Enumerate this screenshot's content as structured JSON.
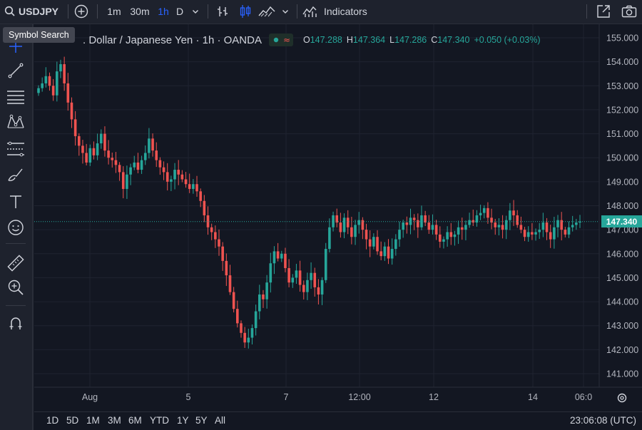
{
  "toolbar": {
    "symbol": "USDJPY",
    "intervals": [
      "1m",
      "30m",
      "1h",
      "D"
    ],
    "active_interval": "1h",
    "indicators_label": "Indicators"
  },
  "tooltip": {
    "text": "Symbol Search"
  },
  "legend": {
    "title": ". Dollar / Japanese Yen · 1h · OANDA",
    "open_label": "O",
    "open": "147.288",
    "high_label": "H",
    "high": "147.364",
    "low_label": "L",
    "low": "147.286",
    "close_label": "C",
    "close": "147.340",
    "change": "+0.050 (+0.03%)"
  },
  "price_axis": {
    "ticks": [
      "155.000",
      "154.000",
      "153.000",
      "152.000",
      "151.000",
      "150.000",
      "149.000",
      "148.000",
      "147.000",
      "146.000",
      "145.000",
      "144.000",
      "143.000",
      "142.000",
      "141.000"
    ],
    "last_price": "147.340"
  },
  "time_axis": {
    "ticks": [
      "Aug",
      "5",
      "7",
      "12:00",
      "12",
      "14",
      "06:0"
    ]
  },
  "bottom": {
    "ranges": [
      "1D",
      "5D",
      "1M",
      "3M",
      "6M",
      "YTD",
      "1Y",
      "5Y",
      "All"
    ],
    "clock": "23:06:08 (UTC)"
  },
  "colors": {
    "up": "#26a69a",
    "down": "#ef5350",
    "accent": "#2962ff",
    "background": "#131722",
    "grid": "#1f2330"
  },
  "icons": {
    "top": [
      "search-icon",
      "add-symbol-icon",
      "bar-style-icon",
      "candles-icon",
      "area-icon",
      "chevron-down-icon",
      "indicators-icon",
      "fullscreen-icon",
      "camera-icon"
    ],
    "left": [
      "crosshair-icon",
      "trend-line-icon",
      "fib-lines-icon",
      "pattern-icon",
      "forecast-icon",
      "brush-icon",
      "text-icon",
      "emoji-icon",
      "ruler-icon",
      "zoom-icon",
      "magnet-icon"
    ]
  },
  "chart_data": {
    "type": "candlestick",
    "symbol": "USDJPY",
    "interval": "1h",
    "ylim": [
      140.6,
      155.6
    ],
    "candles_close_path": [
      152.9,
      153.1,
      153.4,
      153.0,
      152.6,
      153.6,
      153.9,
      153.1,
      152.3,
      151.6,
      150.9,
      150.5,
      150.2,
      149.8,
      150.4,
      150.1,
      150.6,
      151.0,
      150.3,
      150.0,
      149.9,
      149.7,
      149.4,
      148.7,
      149.3,
      149.6,
      149.8,
      149.5,
      149.9,
      150.2,
      150.8,
      150.3,
      149.9,
      149.6,
      149.4,
      149.0,
      149.1,
      149.5,
      149.3,
      149.1,
      148.9,
      148.7,
      148.9,
      148.6,
      148.2,
      147.6,
      147.1,
      146.9,
      146.6,
      146.3,
      145.7,
      145.1,
      144.4,
      143.7,
      143.1,
      142.7,
      142.3,
      142.5,
      142.9,
      143.6,
      144.3,
      144.1,
      144.8,
      145.6,
      146.1,
      145.8,
      146.0,
      145.4,
      144.8,
      145.0,
      145.3,
      144.7,
      144.4,
      144.9,
      145.2,
      144.6,
      144.3,
      144.9,
      146.2,
      147.1,
      147.6,
      147.3,
      146.9,
      147.5,
      147.1,
      146.7,
      147.2,
      147.4,
      147.0,
      146.6,
      146.3,
      146.7,
      146.1,
      145.9,
      146.3,
      145.8,
      146.2,
      146.6,
      147.0,
      147.3,
      147.2,
      147.5,
      147.4,
      147.1,
      147.6,
      147.3,
      147.0,
      147.2,
      146.8,
      146.5,
      146.6,
      146.9,
      146.7,
      146.8,
      147.1,
      147.0,
      147.2,
      147.4,
      147.3,
      147.6,
      147.7,
      147.9,
      147.5,
      147.3,
      147.1,
      147.2,
      147.0,
      147.4,
      147.8,
      147.6,
      147.2,
      147.0,
      146.7,
      146.9,
      146.8,
      146.9,
      147.0,
      147.3,
      146.9,
      146.6,
      147.1,
      147.4,
      147.0,
      146.8,
      147.1,
      147.2,
      147.3,
      147.34
    ],
    "last_price": 147.34
  }
}
